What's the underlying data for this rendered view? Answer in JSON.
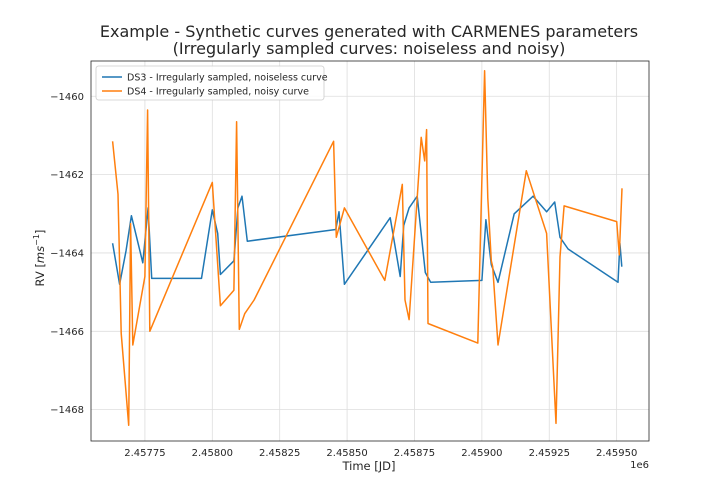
{
  "chart_data": {
    "type": "line",
    "title": "Example - Synthetic curves generated with CARMENES parameters",
    "subtitle": "(Irregularly sampled curves: noiseless and noisy)",
    "xlabel": "Time [JD]",
    "ylabel_main": "RV [",
    "ylabel_math": "ms",
    "ylabel_sup": "−1",
    "ylabel_close": "]",
    "x_offset_label": "1e6",
    "xlim": [
      2457550,
      2459620
    ],
    "ylim": [
      -1468.8,
      -1459.1
    ],
    "xticks": [
      2457750,
      2458000,
      2458250,
      2458500,
      2458750,
      2459000,
      2459250,
      2459500
    ],
    "xtick_labels": [
      "2.45775",
      "2.45800",
      "2.45825",
      "2.45850",
      "2.45875",
      "2.45900",
      "2.45925",
      "2.45950"
    ],
    "yticks": [
      -1468,
      -1466,
      -1464,
      -1462,
      -1460
    ],
    "ytick_labels": [
      "−1468",
      "−1466",
      "−1464",
      "−1462",
      "−1460"
    ],
    "grid": true,
    "legend_position": "top-left",
    "series": [
      {
        "name": "DS3 - Irregularly sampled, noiseless curve",
        "color": "#1f77b4",
        "x": [
          2457630,
          2457656,
          2457680,
          2457700,
          2457742,
          2457762,
          2457775,
          2457960,
          2458000,
          2458020,
          2458030,
          2458080,
          2458095,
          2458110,
          2458130,
          2458458,
          2458470,
          2458490,
          2458660,
          2458697,
          2458710,
          2458730,
          2458760,
          2458790,
          2458810,
          2459000,
          2459015,
          2459035,
          2459060,
          2459120,
          2459190,
          2459240,
          2459270,
          2459290,
          2459320,
          2459505,
          2459512,
          2459519
        ],
        "y": [
          -1463.75,
          -1464.8,
          -1463.95,
          -1463.05,
          -1464.25,
          -1462.85,
          -1464.65,
          -1464.65,
          -1462.9,
          -1463.5,
          -1464.55,
          -1464.2,
          -1462.85,
          -1462.55,
          -1463.7,
          -1463.4,
          -1462.95,
          -1464.8,
          -1463.1,
          -1464.6,
          -1463.3,
          -1462.85,
          -1462.55,
          -1464.5,
          -1464.75,
          -1464.7,
          -1463.15,
          -1464.3,
          -1464.75,
          -1463.0,
          -1462.55,
          -1462.95,
          -1462.7,
          -1463.6,
          -1463.9,
          -1464.75,
          -1463.75,
          -1464.35
        ]
      },
      {
        "name": "DS4 - Irregularly sampled, noisy curve",
        "color": "#ff7f0e",
        "x": [
          2457630,
          2457650,
          2457662,
          2457690,
          2457697,
          2457705,
          2457750,
          2457760,
          2457768,
          2458000,
          2458030,
          2458080,
          2458090,
          2458100,
          2458120,
          2458155,
          2458450,
          2458460,
          2458490,
          2458640,
          2458705,
          2458715,
          2458730,
          2458775,
          2458788,
          2458795,
          2458800,
          2458985,
          2459010,
          2459022,
          2459035,
          2459040,
          2459060,
          2459165,
          2459240,
          2459275,
          2459290,
          2459305,
          2459500,
          2459510,
          2459520
        ],
        "y": [
          -1461.15,
          -1462.5,
          -1466.05,
          -1468.4,
          -1463.25,
          -1466.35,
          -1464.6,
          -1460.35,
          -1466.0,
          -1462.2,
          -1465.35,
          -1464.95,
          -1460.65,
          -1465.95,
          -1465.55,
          -1465.2,
          -1461.15,
          -1463.6,
          -1462.85,
          -1464.7,
          -1462.25,
          -1465.2,
          -1465.7,
          -1461.05,
          -1461.65,
          -1460.85,
          -1465.8,
          -1466.3,
          -1459.35,
          -1462.6,
          -1464.2,
          -1464.35,
          -1466.35,
          -1461.9,
          -1463.5,
          -1468.35,
          -1464.1,
          -1462.8,
          -1463.2,
          -1464.05,
          -1462.35
        ]
      }
    ]
  }
}
